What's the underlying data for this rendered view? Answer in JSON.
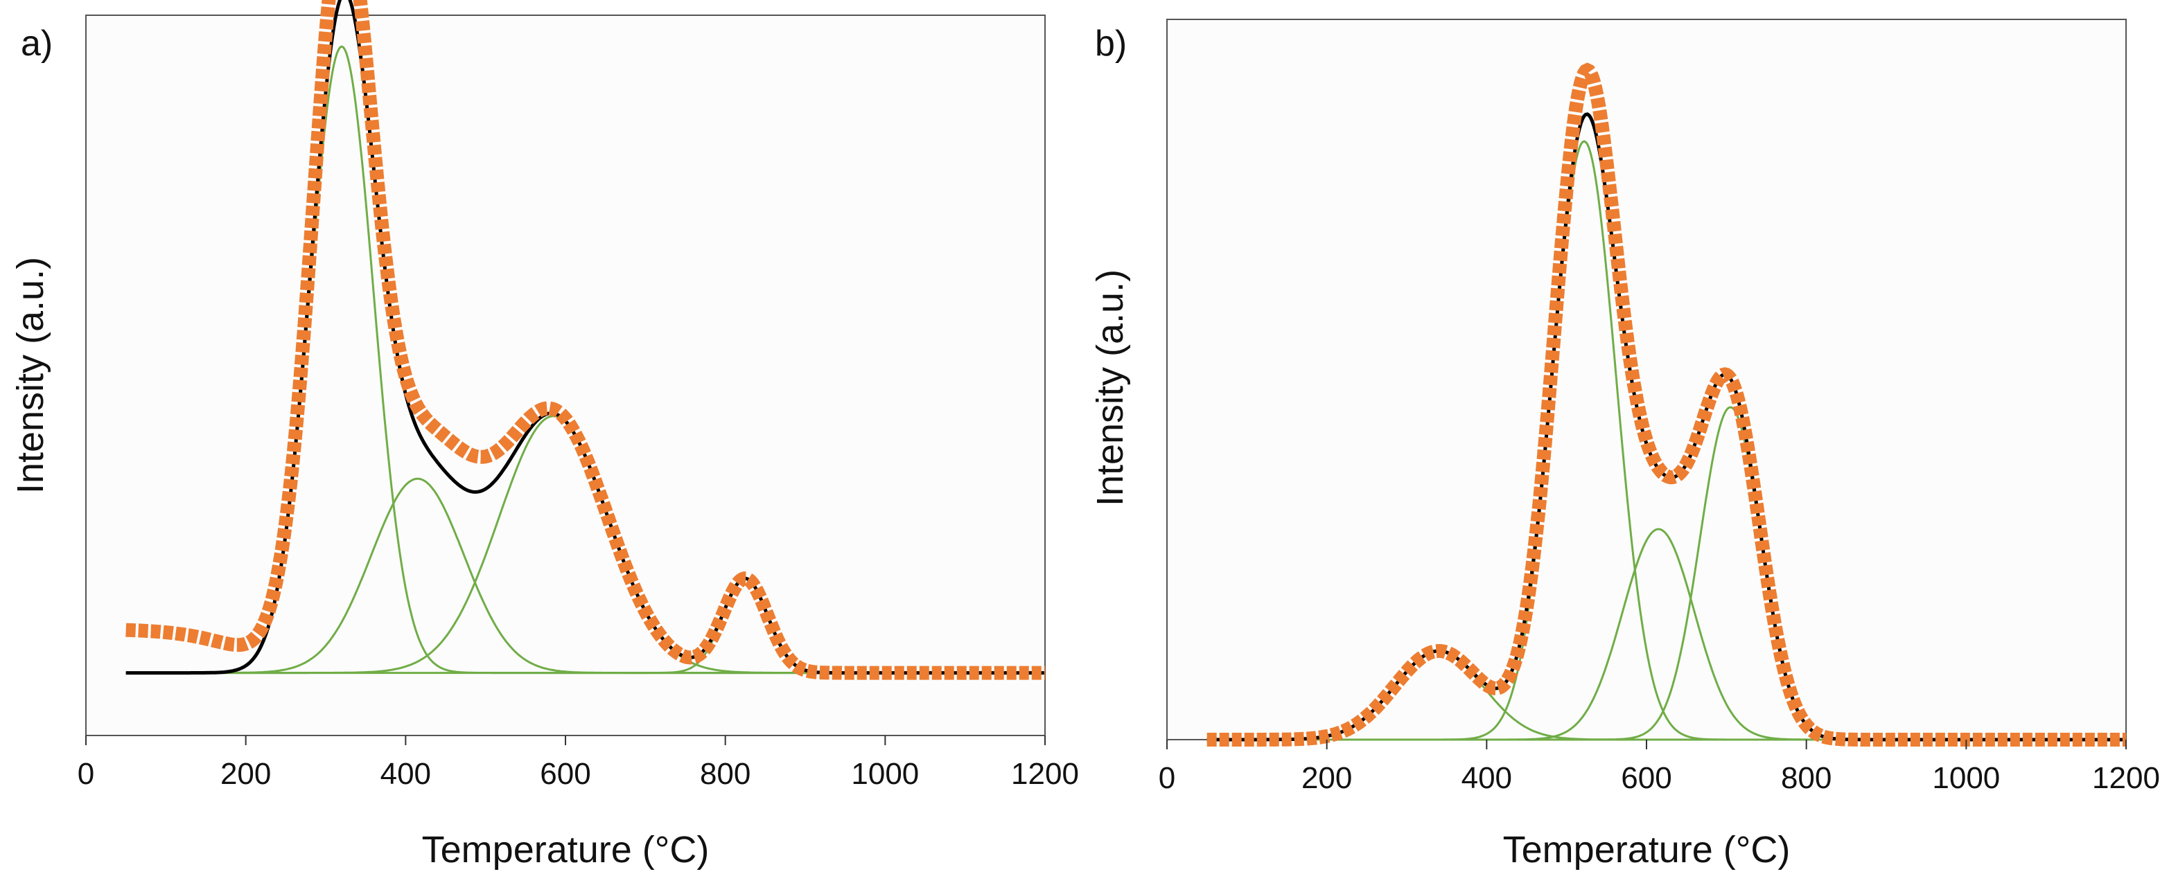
{
  "chart_data": [
    {
      "panel": "a)",
      "type": "line",
      "xlabel": "Temperature (°C)",
      "ylabel": "Intensity (a.u.)",
      "xlim": [
        0,
        1200
      ],
      "ylim": [
        0,
        1.15
      ],
      "x_ticks": [
        0,
        200,
        400,
        600,
        800,
        1000,
        1200
      ],
      "x_tick_labels": [
        "0",
        "200",
        "400",
        "600",
        "800",
        "1000",
        "1200"
      ],
      "baseline": 0.1,
      "experimental_offset": [
        0.07,
        200,
        40
      ],
      "components": [
        {
          "center": 320,
          "height": 1.0,
          "sigma": 40
        },
        {
          "center": 415,
          "height": 0.31,
          "sigma": 58
        },
        {
          "center": 585,
          "height": 0.41,
          "sigma": 68
        },
        {
          "center": 825,
          "height": 0.15,
          "sigma": 28
        }
      ],
      "experimental_extra": [
        {
          "center": 320,
          "height": 0.12,
          "sigma": 25
        },
        {
          "center": 470,
          "height": 0.06,
          "sigma": 55
        }
      ],
      "x_range": [
        50,
        1200
      ],
      "series_colors": {
        "experimental": "#ed7d31",
        "fit": "#000000",
        "components": "#70ad47"
      }
    },
    {
      "panel": "b)",
      "type": "line",
      "xlabel": "Temperature (°C)",
      "ylabel": "Intensity (a.u.)",
      "xlim": [
        0,
        1200
      ],
      "ylim": [
        0,
        1.3
      ],
      "x_ticks": [
        0,
        200,
        400,
        600,
        800,
        1000,
        1200
      ],
      "x_tick_labels": [
        "0",
        "200",
        "400",
        "600",
        "800",
        "1000",
        "1200"
      ],
      "baseline": 0.0,
      "experimental_offset": [
        0,
        0,
        0
      ],
      "components": [
        {
          "center": 340,
          "height": 0.16,
          "sigma": 55
        },
        {
          "center": 522,
          "height": 1.08,
          "sigma": 40
        },
        {
          "center": 615,
          "height": 0.38,
          "sigma": 45
        },
        {
          "center": 705,
          "height": 0.6,
          "sigma": 38
        }
      ],
      "experimental_extra": [
        {
          "center": 530,
          "height": 0.08,
          "sigma": 30
        }
      ],
      "x_range": [
        50,
        1200
      ],
      "series_colors": {
        "experimental": "#ed7d31",
        "fit": "#000000",
        "components": "#70ad47"
      }
    }
  ]
}
